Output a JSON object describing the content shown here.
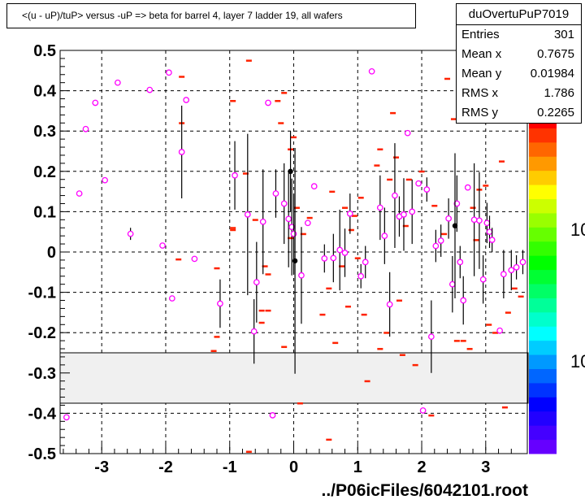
{
  "title": "<(u - uP)/tuP> versus  -uP => beta for barrel 4, layer 7 ladder 19, all wafers",
  "stats": {
    "name": "duOvertuPuP7019",
    "rows": [
      {
        "label": "Entries",
        "value": "301"
      },
      {
        "label": "Mean x",
        "value": "0.7675"
      },
      {
        "label": "Mean y",
        "value": "0.01984"
      },
      {
        "label": "RMS x",
        "value": "1.786"
      },
      {
        "label": "RMS y",
        "value": "0.2265"
      }
    ]
  },
  "footer": "../P06icFiles/6042101.root",
  "colorbar_labels": [
    "10",
    "10"
  ],
  "chart_data": {
    "type": "scatter",
    "title": "<(u - uP)/tuP> versus  -uP => beta for barrel 4, layer 7 ladder 19, all wafers",
    "xlim": [
      -3.65,
      3.65
    ],
    "ylim": [
      -0.5,
      0.5
    ],
    "x_ticks": [
      "-3",
      "-2",
      "-1",
      "0",
      "1",
      "2",
      "3"
    ],
    "y_ticks": [
      "0.5",
      "0.4",
      "0.3",
      "0.2",
      "0.1",
      "0",
      "-0.1",
      "-0.2",
      "-0.3",
      "-0.4",
      "-0.5"
    ],
    "grid": true,
    "excluded_band": [
      -0.375,
      -0.25
    ],
    "colors": {
      "profile": "#ff00ff",
      "cells": "#ff2200",
      "black_points": "#000000"
    },
    "profile_points": [
      {
        "x": -3.55,
        "y": -0.41,
        "e": 0
      },
      {
        "x": -3.35,
        "y": 0.145,
        "e": 0
      },
      {
        "x": -3.25,
        "y": 0.305,
        "e": 0
      },
      {
        "x": -3.1,
        "y": 0.37,
        "e": 0
      },
      {
        "x": -2.95,
        "y": 0.178,
        "e": 0
      },
      {
        "x": -2.75,
        "y": 0.42,
        "e": 0
      },
      {
        "x": -2.55,
        "y": 0.045,
        "e": 0.015
      },
      {
        "x": -2.25,
        "y": 0.402,
        "e": 0
      },
      {
        "x": -2.05,
        "y": 0.016,
        "e": 0
      },
      {
        "x": -1.95,
        "y": 0.445,
        "e": 0
      },
      {
        "x": -1.9,
        "y": -0.115,
        "e": 0
      },
      {
        "x": -1.75,
        "y": 0.248,
        "e": 0.115
      },
      {
        "x": -1.68,
        "y": 0.377,
        "e": 0
      },
      {
        "x": -1.55,
        "y": -0.017,
        "e": 0
      },
      {
        "x": -1.15,
        "y": -0.128,
        "e": 0.06
      },
      {
        "x": -0.92,
        "y": 0.19,
        "e": 0.085
      },
      {
        "x": -0.72,
        "y": 0.093,
        "e": 0.2
      },
      {
        "x": -0.62,
        "y": -0.197,
        "e": 0.08
      },
      {
        "x": -0.58,
        "y": -0.075,
        "e": 0.1
      },
      {
        "x": -0.48,
        "y": 0.075,
        "e": 0.13
      },
      {
        "x": -0.4,
        "y": 0.37,
        "e": 0
      },
      {
        "x": -0.28,
        "y": 0.145,
        "e": 0.06
      },
      {
        "x": -0.15,
        "y": 0.12,
        "e": 0.1
      },
      {
        "x": -0.08,
        "y": 0.082,
        "e": 0.12
      },
      {
        "x": -0.03,
        "y": 0.062,
        "e": 0.12
      },
      {
        "x": 0.0,
        "y": 0.045,
        "e": 0.1
      },
      {
        "x": 0.12,
        "y": -0.058,
        "e": 0.12
      },
      {
        "x": 0.22,
        "y": 0.072,
        "e": 0
      },
      {
        "x": 0.32,
        "y": 0.163,
        "e": 0
      },
      {
        "x": -0.33,
        "y": -0.405,
        "e": 0
      },
      {
        "x": 0.48,
        "y": -0.016,
        "e": 0.035
      },
      {
        "x": 0.62,
        "y": -0.015,
        "e": 0.06
      },
      {
        "x": 0.72,
        "y": 0.005,
        "e": 0.1
      },
      {
        "x": 0.8,
        "y": -0.002,
        "e": 0.06
      },
      {
        "x": 0.88,
        "y": 0.095,
        "e": 0.05
      },
      {
        "x": 1.05,
        "y": -0.06,
        "e": 0.03
      },
      {
        "x": 1.12,
        "y": -0.025,
        "e": 0.04
      },
      {
        "x": 1.22,
        "y": 0.448,
        "e": 0
      },
      {
        "x": 1.35,
        "y": 0.11,
        "e": 0.08
      },
      {
        "x": 1.42,
        "y": 0.04,
        "e": 0.07
      },
      {
        "x": 1.5,
        "y": -0.13,
        "e": 0.08
      },
      {
        "x": 1.58,
        "y": 0.14,
        "e": 0.13
      },
      {
        "x": 1.65,
        "y": 0.088,
        "e": 0.05
      },
      {
        "x": 1.72,
        "y": 0.093,
        "e": 0.09
      },
      {
        "x": 1.78,
        "y": 0.295,
        "e": 0
      },
      {
        "x": 1.85,
        "y": 0.1,
        "e": 0.08
      },
      {
        "x": 1.95,
        "y": 0.17,
        "e": 0
      },
      {
        "x": 2.02,
        "y": -0.393,
        "e": 0
      },
      {
        "x": 2.08,
        "y": 0.155,
        "e": 0.03
      },
      {
        "x": 2.15,
        "y": -0.21,
        "e": 0.09
      },
      {
        "x": 2.22,
        "y": 0.015,
        "e": 0.04
      },
      {
        "x": 2.3,
        "y": 0.028,
        "e": 0.04
      },
      {
        "x": 2.42,
        "y": 0.083,
        "e": 0.05
      },
      {
        "x": 2.48,
        "y": -0.08,
        "e": 0.07
      },
      {
        "x": 2.55,
        "y": 0.12,
        "e": 0.07
      },
      {
        "x": 2.6,
        "y": -0.025,
        "e": 0.04
      },
      {
        "x": 2.65,
        "y": -0.12,
        "e": 0.06
      },
      {
        "x": 2.72,
        "y": 0.16,
        "e": 0
      },
      {
        "x": 2.82,
        "y": 0.08,
        "e": 0.14
      },
      {
        "x": 2.9,
        "y": 0.078,
        "e": 0.12
      },
      {
        "x": 2.96,
        "y": -0.068,
        "e": 0.06
      },
      {
        "x": 3.02,
        "y": 0.072,
        "e": 0.05
      },
      {
        "x": 3.06,
        "y": 0.05,
        "e": 0.04
      },
      {
        "x": 3.1,
        "y": 0.03,
        "e": 0.03
      },
      {
        "x": 3.22,
        "y": -0.195,
        "e": 0
      },
      {
        "x": 3.28,
        "y": -0.055,
        "e": 0.06
      },
      {
        "x": 3.4,
        "y": -0.045,
        "e": 0.05
      },
      {
        "x": 3.48,
        "y": -0.038,
        "e": 0.03
      },
      {
        "x": 3.58,
        "y": -0.025,
        "e": 0.03
      }
    ],
    "black_points": [
      {
        "x": -0.05,
        "y": 0.2,
        "e": 0.1
      },
      {
        "x": 0.02,
        "y": -0.022,
        "e": 0.28
      },
      {
        "x": 2.52,
        "y": 0.065,
        "e": 0.18
      }
    ],
    "cells": [
      {
        "x": -1.75,
        "y": 0.435
      },
      {
        "x": -1.8,
        "y": -0.018
      },
      {
        "x": -1.75,
        "y": 0.32
      },
      {
        "x": -0.95,
        "y": 0.375
      },
      {
        "x": -0.7,
        "y": 0.475
      },
      {
        "x": -1.2,
        "y": -0.04
      },
      {
        "x": -1.2,
        "y": -0.21
      },
      {
        "x": -1.25,
        "y": -0.245
      },
      {
        "x": -0.95,
        "y": 0.06
      },
      {
        "x": -0.95,
        "y": 0.055
      },
      {
        "x": -0.75,
        "y": 0.195
      },
      {
        "x": -0.6,
        "y": 0.08
      },
      {
        "x": -0.5,
        "y": -0.145
      },
      {
        "x": -0.5,
        "y": -0.175
      },
      {
        "x": -0.45,
        "y": -0.035
      },
      {
        "x": -0.4,
        "y": -0.055
      },
      {
        "x": -0.25,
        "y": 0.375
      },
      {
        "x": -0.15,
        "y": 0.395
      },
      {
        "x": -0.05,
        "y": 0.255
      },
      {
        "x": -0.05,
        "y": 0.035
      },
      {
        "x": 0.0,
        "y": 0.285
      },
      {
        "x": 0.05,
        "y": 0.11
      },
      {
        "x": 0.1,
        "y": -0.375
      },
      {
        "x": 0.15,
        "y": 0.045
      },
      {
        "x": 0.25,
        "y": 0.085
      },
      {
        "x": -0.15,
        "y": -0.235
      },
      {
        "x": -0.4,
        "y": -0.145
      },
      {
        "x": 0.45,
        "y": -0.155
      },
      {
        "x": 0.55,
        "y": -0.09
      },
      {
        "x": 0.6,
        "y": 0.15
      },
      {
        "x": 0.65,
        "y": -0.225
      },
      {
        "x": 0.75,
        "y": -0.035
      },
      {
        "x": 0.8,
        "y": 0.11
      },
      {
        "x": 0.85,
        "y": -0.135
      },
      {
        "x": 0.9,
        "y": 0.055
      },
      {
        "x": 1.05,
        "y": 0.135
      },
      {
        "x": 1.1,
        "y": -0.155
      },
      {
        "x": 1.15,
        "y": -0.32
      },
      {
        "x": 1.3,
        "y": 0.215
      },
      {
        "x": 1.35,
        "y": 0.255
      },
      {
        "x": 1.35,
        "y": -0.24
      },
      {
        "x": 1.45,
        "y": -0.2
      },
      {
        "x": 1.55,
        "y": 0.345
      },
      {
        "x": 1.6,
        "y": 0.235
      },
      {
        "x": 1.65,
        "y": -0.12
      },
      {
        "x": 1.7,
        "y": -0.255
      },
      {
        "x": 1.75,
        "y": 0.065
      },
      {
        "x": 1.8,
        "y": 0.18
      },
      {
        "x": 1.9,
        "y": -0.28
      },
      {
        "x": 2.0,
        "y": 0.2
      },
      {
        "x": 2.15,
        "y": -0.405
      },
      {
        "x": 2.2,
        "y": 0.115
      },
      {
        "x": 2.35,
        "y": 0.045
      },
      {
        "x": 2.4,
        "y": 0.43
      },
      {
        "x": 2.5,
        "y": 0.33
      },
      {
        "x": 2.55,
        "y": -0.22
      },
      {
        "x": 2.65,
        "y": -0.22
      },
      {
        "x": 2.75,
        "y": -0.24
      },
      {
        "x": 2.8,
        "y": 0.11
      },
      {
        "x": 2.9,
        "y": 0.155
      },
      {
        "x": 3.0,
        "y": 0.165
      },
      {
        "x": 3.05,
        "y": -0.18
      },
      {
        "x": 3.15,
        "y": -0.2
      },
      {
        "x": 3.25,
        "y": 0.225
      },
      {
        "x": 3.3,
        "y": -0.385
      },
      {
        "x": 3.35,
        "y": -0.15
      },
      {
        "x": 3.45,
        "y": -0.09
      },
      {
        "x": 3.55,
        "y": -0.11
      },
      {
        "x": 0.55,
        "y": -0.465
      },
      {
        "x": -0.7,
        "y": -0.495
      },
      {
        "x": 1.5,
        "y": 0.18
      },
      {
        "x": -0.2,
        "y": 0.32
      },
      {
        "x": 0.95,
        "y": 0.09
      },
      {
        "x": 1.0,
        "y": -0.015
      },
      {
        "x": 2.85,
        "y": 0.03
      }
    ],
    "colorbar_colors": [
      "#6600ff",
      "#4400ff",
      "#2200ff",
      "#0000ff",
      "#0033ff",
      "#0066ff",
      "#0099ff",
      "#00ccff",
      "#00ffff",
      "#00ffcc",
      "#00ff99",
      "#00ff66",
      "#00ff33",
      "#00ff00",
      "#33ff00",
      "#66ff00",
      "#99ff00",
      "#ccff00",
      "#ffff00",
      "#ffcc00",
      "#ff9900",
      "#ff6600",
      "#ff3300",
      "#ff0000"
    ]
  }
}
